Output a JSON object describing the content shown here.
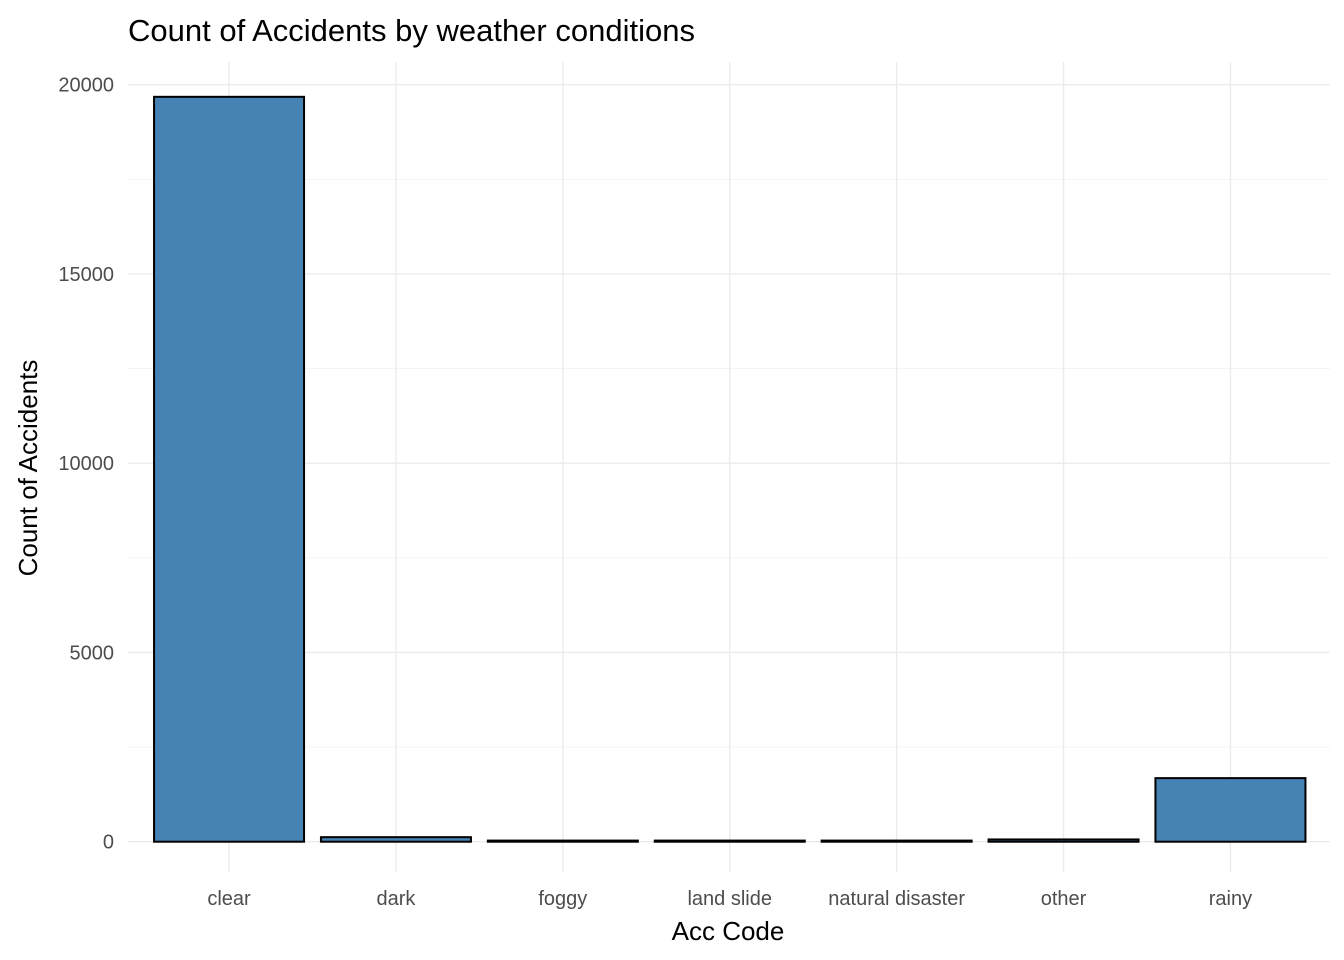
{
  "chart_data": {
    "type": "bar",
    "title": "Count of Accidents by weather conditions",
    "xlabel": "Acc Code",
    "ylabel": "Count of Accidents",
    "categories": [
      "clear",
      "dark",
      "foggy",
      "land slide",
      "natural disaster",
      "other",
      "rainy"
    ],
    "values": [
      19680,
      120,
      30,
      30,
      30,
      60,
      1680
    ],
    "ylim": [
      -800,
      20600
    ],
    "yticks": [
      0,
      5000,
      10000,
      15000,
      20000
    ],
    "ytick_labels": [
      "0",
      "5000",
      "10000",
      "15000",
      "20000"
    ],
    "grid": true,
    "legend": "none",
    "colors": {
      "bar_fill": "#4682b4",
      "bar_outline": "#000000",
      "grid": "#ebebeb"
    }
  }
}
